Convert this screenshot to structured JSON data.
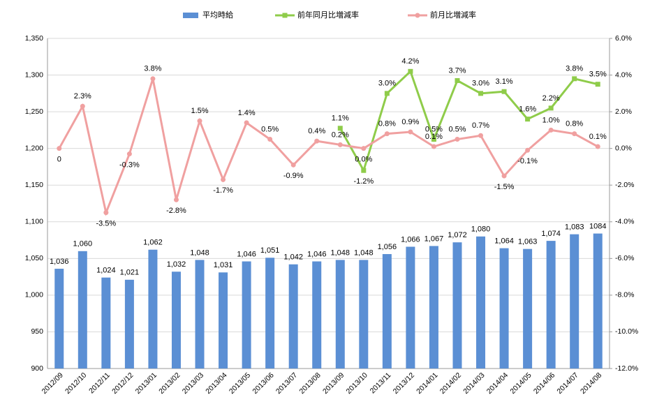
{
  "chart_data": {
    "type": "bar",
    "categories": [
      "2012/09",
      "2012/10",
      "2012/11",
      "2012/12",
      "2013/01",
      "2013/02",
      "2013/03",
      "2013/04",
      "2013/05",
      "2013/06",
      "2013/07",
      "2013/08",
      "2013/09",
      "2013/10",
      "2013/11",
      "2013/12",
      "2014/01",
      "2014/02",
      "2014/03",
      "2014/04",
      "2014/05",
      "2014/06",
      "2014/07",
      "2014/08"
    ],
    "series": [
      {
        "name": "平均時給",
        "type": "bar",
        "color": "#5b8fd4",
        "values": [
          1036,
          1060,
          1024,
          1021,
          1062,
          1032,
          1048,
          1031,
          1046,
          1051,
          1042,
          1046,
          1048,
          1048,
          1056,
          1066,
          1067,
          1072,
          1080,
          1064,
          1063,
          1074,
          1083,
          1084
        ],
        "value_labels": [
          "1,036",
          "1,060",
          "1,024",
          "1,021",
          "1,062",
          "1,032",
          "1,048",
          "1,031",
          "1,046",
          "1,051",
          "1,042",
          "1,046",
          "1,048",
          "1,048",
          "1,056",
          "1,066",
          "1,067",
          "1,072",
          "1,080",
          "1,064",
          "1,063",
          "1,074",
          "1,083",
          "1084"
        ]
      },
      {
        "name": "前年同月比増減率",
        "type": "line",
        "axis": "y2",
        "color": "#8fcc4a",
        "marker": "square",
        "values": [
          null,
          null,
          null,
          null,
          null,
          null,
          null,
          null,
          null,
          null,
          null,
          null,
          1.1,
          -1.2,
          3.0,
          4.2,
          0.5,
          3.7,
          3.0,
          3.1,
          1.6,
          2.2,
          3.8,
          3.5
        ],
        "value_labels": [
          null,
          null,
          null,
          null,
          null,
          null,
          null,
          null,
          null,
          null,
          null,
          null,
          "1.1%",
          "-1.2%",
          "3.0%",
          "4.2%",
          "0.5%",
          "3.7%",
          "3.0%",
          "3.1%",
          "1.6%",
          "2.2%",
          "3.8%",
          "3.5%"
        ]
      },
      {
        "name": "前月比増減率",
        "type": "line",
        "axis": "y2",
        "color": "#f0a0a0",
        "marker": "circle",
        "values": [
          0,
          2.3,
          -3.5,
          -0.3,
          3.8,
          -2.8,
          1.5,
          -1.7,
          1.4,
          0.5,
          -0.9,
          0.4,
          0.2,
          0.0,
          0.8,
          0.9,
          0.1,
          0.5,
          0.7,
          -1.5,
          -0.1,
          1.0,
          0.8,
          0.1
        ],
        "value_labels": [
          "0",
          "2.3%",
          "-3.5%",
          "-0.3%",
          "3.8%",
          "-2.8%",
          "1.5%",
          "-1.7%",
          "1.4%",
          "0.5%",
          "-0.9%",
          "0.4%",
          "0.2%",
          "0.0%",
          "0.8%",
          "0.9%",
          "0.1%",
          "0.5%",
          "0.7%",
          "-1.5%",
          "-0.1%",
          "1.0%",
          "0.8%",
          "0.1%"
        ]
      }
    ],
    "ylim": [
      900,
      1350
    ],
    "yticks": [
      900,
      950,
      {
        "value": 1000,
        "label": "1,000"
      },
      {
        "value": 1050,
        "label": "1,050"
      },
      {
        "value": 1100,
        "label": "1,100"
      },
      {
        "value": 1150,
        "label": "1,150"
      },
      {
        "value": 1200,
        "label": "1,200"
      },
      {
        "value": 1250,
        "label": "1,250"
      },
      {
        "value": 1300,
        "label": "1,300"
      },
      {
        "value": 1350,
        "label": "1,350"
      }
    ],
    "y2lim": [
      -12,
      6
    ],
    "y2ticks": [
      {
        "value": -12,
        "label": "-12.0%"
      },
      {
        "value": -10,
        "label": "-10.0%"
      },
      {
        "value": -8,
        "label": "-8.0%"
      },
      {
        "value": -6,
        "label": "-6.0%"
      },
      {
        "value": -4,
        "label": "-4.0%"
      },
      {
        "value": -2,
        "label": "-2.0%"
      },
      {
        "value": 0,
        "label": "0.0%"
      },
      {
        "value": 2,
        "label": "2.0%"
      },
      {
        "value": 4,
        "label": "4.0%"
      },
      {
        "value": 6,
        "label": "6.0%"
      }
    ],
    "grid": true,
    "legend": "top"
  }
}
